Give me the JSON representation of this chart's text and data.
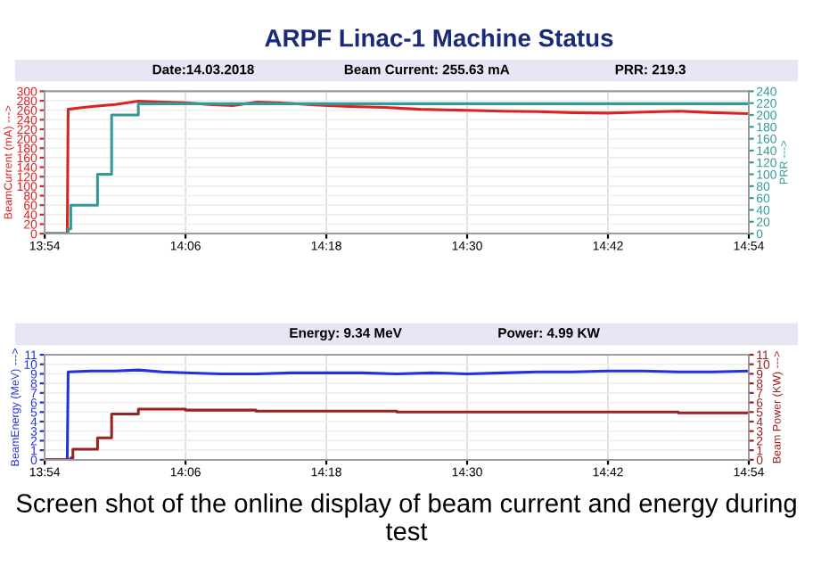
{
  "chart_data": [
    {
      "type": "line",
      "title": "ARPF Linac-1 Machine Status",
      "annotations": [
        "Date:14.03.2018",
        "Beam Current: 255.63 mA",
        "PRR: 219.3"
      ],
      "ylabel": "BeamCurrent (mA) --->",
      "y2label": "PRR --->",
      "grid": true,
      "marker": "none",
      "line_style": "solid",
      "xlim": [
        13.9,
        14.9
      ],
      "xticks": [
        {
          "value": 13.9,
          "label": "13:54"
        },
        {
          "value": 14.1,
          "label": "14:06"
        },
        {
          "value": 14.3,
          "label": "14:18"
        },
        {
          "value": 14.5,
          "label": "14:30"
        },
        {
          "value": 14.7,
          "label": "14:42"
        },
        {
          "value": 14.9,
          "label": "14:54"
        }
      ],
      "ylim": [
        0,
        300
      ],
      "yticks": [
        0,
        20,
        40,
        60,
        80,
        100,
        120,
        140,
        160,
        180,
        200,
        220,
        240,
        260,
        280,
        300
      ],
      "y2lim": [
        0,
        240
      ],
      "y2ticks": [
        0,
        20,
        40,
        60,
        80,
        100,
        120,
        140,
        160,
        180,
        200,
        220,
        240
      ],
      "series": [
        {
          "type": "line",
          "color": "#dd2222",
          "x": [
            13.9,
            13.932,
            13.9333,
            13.95,
            13.967,
            14.0,
            14.033,
            14.05,
            14.1,
            14.133,
            14.167,
            14.2,
            14.233,
            14.283,
            14.333,
            14.383,
            14.433,
            14.5,
            14.55,
            14.6,
            14.65,
            14.7,
            14.75,
            14.8,
            14.85,
            14.9
          ],
          "values": [
            0,
            0,
            262,
            265,
            268,
            272,
            279,
            278,
            276,
            272,
            270,
            277,
            276,
            271,
            268,
            266,
            262,
            260,
            258,
            257,
            255,
            254,
            256,
            258,
            255,
            253
          ]
        },
        {
          "type": "step",
          "axis": "y2",
          "color": "#339999",
          "x": [
            13.9,
            13.9333,
            13.937,
            13.975,
            13.995,
            14.033,
            14.9
          ],
          "values": [
            0,
            8,
            48,
            100,
            200,
            219,
            219
          ]
        }
      ]
    },
    {
      "type": "line",
      "annotations": [
        "Energy: 9.34 MeV",
        "Power: 4.99 KW"
      ],
      "ylabel": "BeamEnergy (MeV) --->",
      "y2label": "Beam Power (KW) --->",
      "grid": true,
      "marker": "none",
      "line_style": "solid",
      "xlim": [
        13.9,
        14.9
      ],
      "xticks": [
        {
          "value": 13.9,
          "label": "13:54"
        },
        {
          "value": 14.1,
          "label": "14:06"
        },
        {
          "value": 14.3,
          "label": "14:18"
        },
        {
          "value": 14.5,
          "label": "14:30"
        },
        {
          "value": 14.7,
          "label": "14:42"
        },
        {
          "value": 14.9,
          "label": "14:54"
        }
      ],
      "ylim": [
        0,
        11
      ],
      "yticks": [
        0,
        1,
        2,
        3,
        4,
        5,
        6,
        7,
        8,
        9,
        10,
        11
      ],
      "y2lim": [
        0,
        11
      ],
      "y2ticks": [
        0,
        1,
        2,
        3,
        4,
        5,
        6,
        7,
        8,
        9,
        10,
        11
      ],
      "series": [
        {
          "type": "line",
          "color": "#2233dd",
          "x": [
            13.9,
            13.932,
            13.9333,
            13.967,
            14.0,
            14.033,
            14.067,
            14.1,
            14.15,
            14.2,
            14.25,
            14.3,
            14.35,
            14.4,
            14.45,
            14.5,
            14.55,
            14.6,
            14.65,
            14.7,
            14.75,
            14.8,
            14.85,
            14.9
          ],
          "values": [
            0,
            0,
            9.2,
            9.3,
            9.3,
            9.4,
            9.2,
            9.1,
            9.0,
            9.0,
            9.1,
            9.1,
            9.1,
            9.0,
            9.1,
            9.0,
            9.1,
            9.2,
            9.2,
            9.3,
            9.3,
            9.2,
            9.2,
            9.3
          ]
        },
        {
          "type": "step",
          "axis": "y2",
          "color": "#992222",
          "x": [
            13.9,
            13.937,
            13.94,
            13.975,
            13.995,
            14.033,
            14.1,
            14.2,
            14.3,
            14.4,
            14.5,
            14.6,
            14.7,
            14.8,
            14.9
          ],
          "values": [
            0,
            0.2,
            1.1,
            2.3,
            4.8,
            5.3,
            5.2,
            5.1,
            5.1,
            5.0,
            5.0,
            5.0,
            5.0,
            4.9,
            4.9
          ]
        }
      ]
    },
    {
      "type": "other",
      "annotations": [
        "Screen shot of the online display of beam current and energy during test"
      ]
    }
  ]
}
